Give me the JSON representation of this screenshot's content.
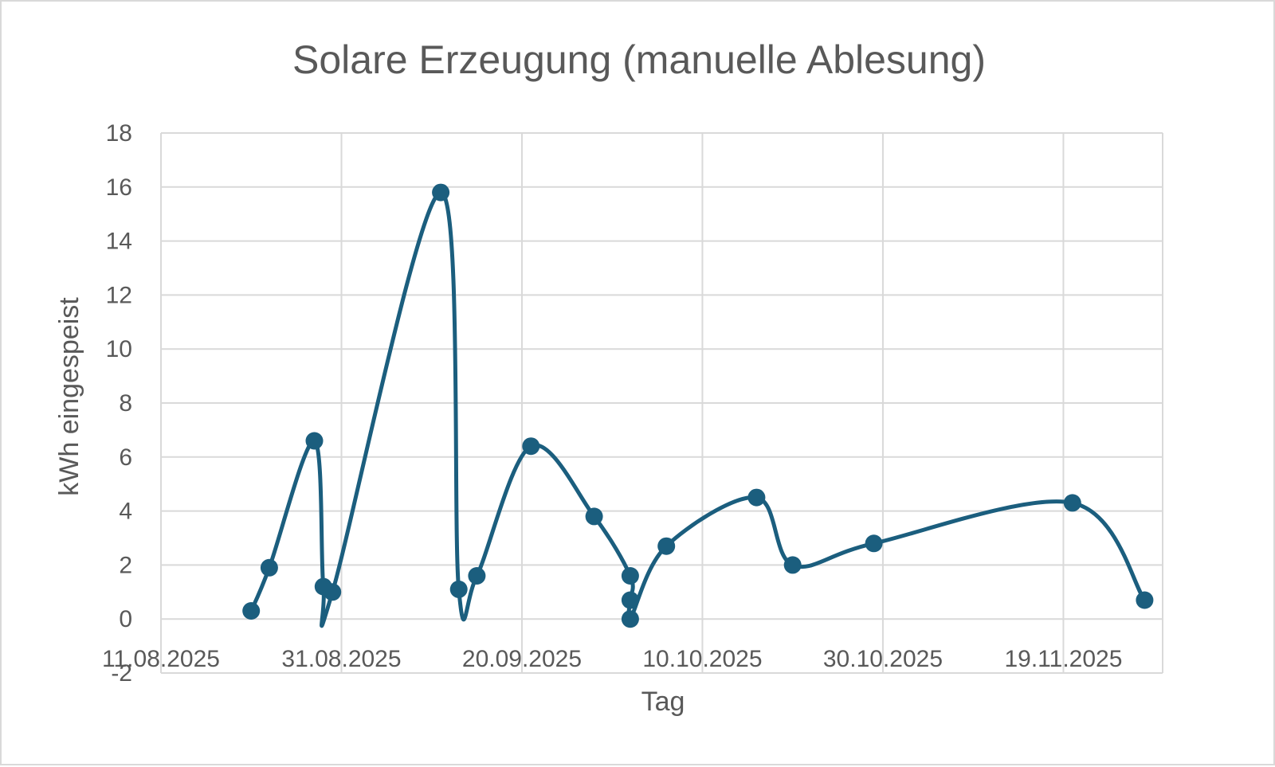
{
  "chart_data": {
    "type": "scatter",
    "title": "Solare Erzeugung (manuelle Ablesung)",
    "xlabel": "Tag",
    "ylabel": "kWh eingespeist",
    "xlim": [
      "11.08.2025",
      "30.11.2025"
    ],
    "ylim": [
      -2,
      18
    ],
    "x_ticks": [
      "11.08.2025",
      "31.08.2025",
      "20.09.2025",
      "10.10.2025",
      "30.10.2025",
      "19.11.2025"
    ],
    "y_ticks": [
      -2,
      0,
      2,
      4,
      6,
      8,
      10,
      12,
      14,
      16,
      18
    ],
    "grid": true,
    "smoothed": true,
    "series": [
      {
        "color": "#1b5e7e",
        "points": [
          {
            "x": "21.08.2025",
            "y": 0.3
          },
          {
            "x": "23.08.2025",
            "y": 1.9
          },
          {
            "x": "28.08.2025",
            "y": 6.6
          },
          {
            "x": "29.08.2025",
            "y": 1.2
          },
          {
            "x": "30.08.2025",
            "y": 1.0
          },
          {
            "x": "11.09.2025",
            "y": 15.8
          },
          {
            "x": "13.09.2025",
            "y": 1.1
          },
          {
            "x": "15.09.2025",
            "y": 1.6
          },
          {
            "x": "21.09.2025",
            "y": 6.4
          },
          {
            "x": "28.09.2025",
            "y": 3.8
          },
          {
            "x": "02.10.2025",
            "y": 1.6
          },
          {
            "x": "02.10.2025",
            "y": 0.7
          },
          {
            "x": "02.10.2025",
            "y": 0.0
          },
          {
            "x": "06.10.2025",
            "y": 2.7
          },
          {
            "x": "16.10.2025",
            "y": 4.5
          },
          {
            "x": "20.10.2025",
            "y": 2.0
          },
          {
            "x": "29.10.2025",
            "y": 2.8
          },
          {
            "x": "20.11.2025",
            "y": 4.3
          },
          {
            "x": "28.11.2025",
            "y": 0.7
          }
        ]
      }
    ]
  }
}
